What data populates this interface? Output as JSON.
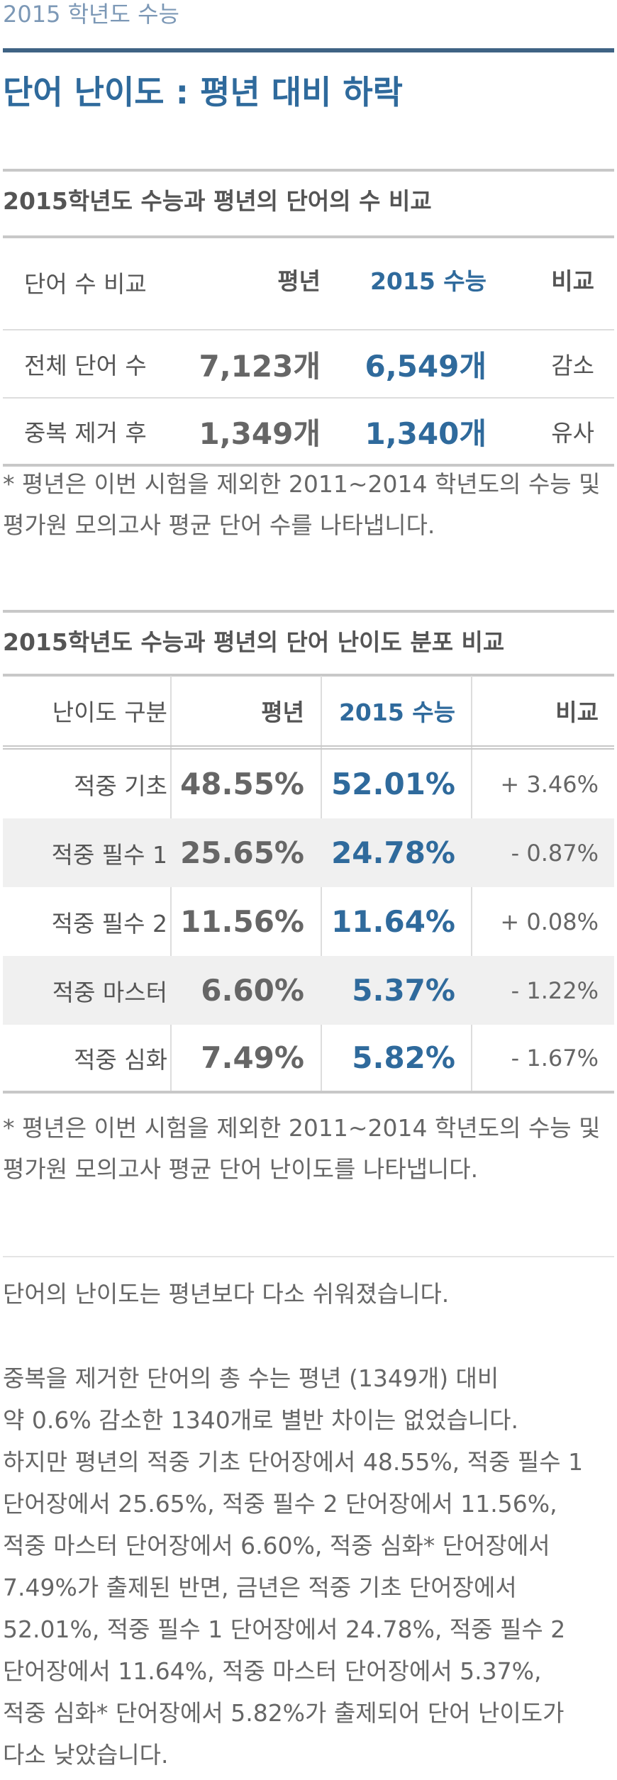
{
  "header": {
    "top_label": "2015 학년도 수능",
    "headline": "단어 난이도 : 평년 대비 하락"
  },
  "table1": {
    "title": "2015학년도 수능과 평년의 단어의 수 비교",
    "columns": [
      "단어 수 비교",
      "평년",
      "2015 수능",
      "비교"
    ],
    "rows": [
      {
        "label": "전체 단어 수",
        "avg": "7,123개",
        "now": "6,549개",
        "cmp": "감소"
      },
      {
        "label": "중복 제거 후",
        "avg": "1,349개",
        "now": "1,340개",
        "cmp": "유사"
      }
    ],
    "note_lines": [
      "* 평년은 이번 시험을 제외한 2011~2014 학년도의 수능 및",
      "평가원 모의고사 평균 단어 수를 나타냅니다."
    ]
  },
  "table2": {
    "title": "2015학년도 수능과 평년의 단어 난이도 분포 비교",
    "columns": [
      "난이도 구분",
      "평년",
      "2015 수능",
      "비교"
    ],
    "rows": [
      {
        "label": "적중 기초",
        "avg": "48.55%",
        "now": "52.01%",
        "cmp": "+ 3.46%"
      },
      {
        "label": "적중 필수 1",
        "avg": "25.65%",
        "now": "24.78%",
        "cmp": "- 0.87%"
      },
      {
        "label": "적중 필수 2",
        "avg": "11.56%",
        "now": "11.64%",
        "cmp": "+ 0.08%"
      },
      {
        "label": "적중 마스터",
        "avg": "6.60%",
        "now": "5.37%",
        "cmp": "- 1.22%"
      },
      {
        "label": "적중 심화",
        "avg": "7.49%",
        "now": "5.82%",
        "cmp": "- 1.67%"
      }
    ],
    "note_lines": [
      "* 평년은 이번 시험을 제외한 2011~2014 학년도의 수능 및",
      "평가원 모의고사 평균 단어 난이도를 나타냅니다."
    ]
  },
  "summary": {
    "lead": "단어의 난이도는 평년보다 다소 쉬워졌습니다.",
    "body_lines": [
      "중복을 제거한 단어의 총 수는 평년 (1349개) 대비",
      "약 0.6% 감소한 1340개로 별반 차이는 없었습니다.",
      "하지만 평년의 적중 기초 단어장에서 48.55%, 적중 필수 1",
      "단어장에서 25.65%, 적중 필수 2 단어장에서 11.56%,",
      "적중 마스터 단어장에서 6.60%, 적중 심화* 단어장에서",
      "7.49%가 출제된 반면, 금년은 적중 기초 단어장에서",
      "52.01%,  적중 필수 1 단어장에서 24.78%, 적중 필수 2",
      "단어장에서 11.64%, 적중 마스터 단어장에서 5.37%,",
      "적중 심화* 단어장에서 5.82%가 출제되어 단어 난이도가",
      "다소 낮았습니다."
    ]
  },
  "colors": {
    "accent": "#2f6a9c",
    "rule": "#3f6384",
    "top_label": "#7c98b6",
    "shade": "#f0f0f0"
  }
}
